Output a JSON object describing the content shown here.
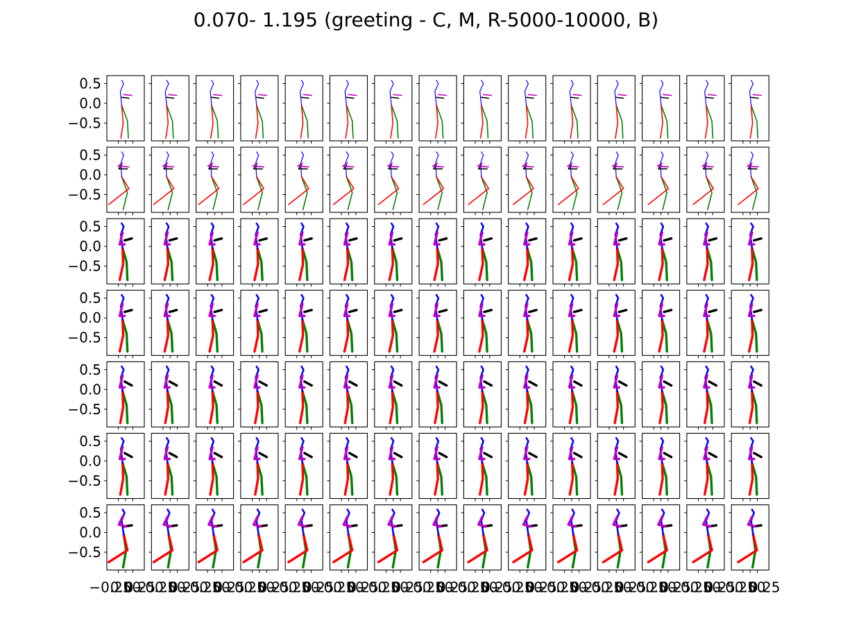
{
  "chart_data": {
    "type": "small-multiples-line",
    "title": "0.070- 1.195 (greeting - C, M, R-5000-10000, B)",
    "rows": 7,
    "cols": 15,
    "ylim": [
      -0.95,
      0.7
    ],
    "xlim": [
      -0.65,
      0.65
    ],
    "yticks": [
      "0.5",
      "0.0",
      "−0.5"
    ],
    "ytick_values": [
      0.5,
      0.0,
      -0.5
    ],
    "xtick_values": [
      -0.25,
      0.0,
      0.25
    ],
    "xtick_labels_visible": [
      "−0.25",
      "0.00",
      "0.25"
    ],
    "colors": {
      "right_leg": "#ff0000",
      "left_leg": "#008000",
      "spine": "#0000ff",
      "right_arm": "#bf00bf",
      "left_arm": "#000000"
    },
    "row_line_style": [
      "thin",
      "thin",
      "thick",
      "thick",
      "thick",
      "thick",
      "thick"
    ],
    "pose_groups": [
      {
        "rows": [
          0
        ],
        "poses": {
          "spine": [
            [
              -0.05,
              -0.05
            ],
            [
              -0.1,
              0.3
            ],
            [
              0.02,
              0.5
            ],
            [
              -0.05,
              0.58
            ]
          ],
          "right_arm": [
            [
              0.02,
              0.22
            ],
            [
              0.3,
              0.2
            ]
          ],
          "left_arm": [
            [
              -0.05,
              0.15
            ],
            [
              0.2,
              0.13
            ]
          ],
          "right_leg": [
            [
              -0.05,
              -0.05
            ],
            [
              0.0,
              -0.5
            ],
            [
              -0.08,
              -0.88
            ]
          ],
          "left_leg": [
            [
              -0.05,
              -0.05
            ],
            [
              0.15,
              -0.45
            ],
            [
              0.18,
              -0.88
            ]
          ]
        }
      },
      {
        "rows": [
          1
        ],
        "poses": {
          "spine": [
            [
              -0.05,
              -0.05
            ],
            [
              -0.08,
              0.3
            ],
            [
              0.02,
              0.5
            ],
            [
              -0.05,
              0.58
            ]
          ],
          "right_arm": [
            [
              -0.02,
              0.3
            ],
            [
              -0.18,
              0.22
            ],
            [
              0.2,
              0.2
            ]
          ],
          "left_arm": [
            [
              -0.05,
              0.25
            ],
            [
              -0.15,
              0.15
            ],
            [
              0.15,
              0.15
            ]
          ],
          "right_leg": [
            [
              -0.05,
              -0.05
            ],
            [
              0.2,
              -0.35
            ],
            [
              -0.5,
              -0.75
            ]
          ],
          "left_leg": [
            [
              -0.05,
              -0.05
            ],
            [
              0.15,
              -0.45
            ],
            [
              0.0,
              -0.88
            ]
          ]
        }
      },
      {
        "rows": [
          2,
          3
        ],
        "poses": {
          "spine": [
            [
              -0.02,
              -0.05
            ],
            [
              -0.08,
              0.3
            ],
            [
              0.02,
              0.5
            ],
            [
              -0.05,
              0.58
            ]
          ],
          "right_arm": [
            [
              -0.02,
              0.35
            ],
            [
              -0.12,
              0.05
            ],
            [
              0.05,
              0.05
            ]
          ],
          "left_arm": [
            [
              0.05,
              0.15
            ],
            [
              0.3,
              0.2
            ]
          ],
          "right_leg": [
            [
              -0.02,
              -0.05
            ],
            [
              0.0,
              -0.45
            ],
            [
              -0.12,
              -0.85
            ]
          ],
          "left_leg": [
            [
              -0.02,
              -0.05
            ],
            [
              0.12,
              -0.4
            ],
            [
              0.15,
              -0.85
            ]
          ]
        }
      },
      {
        "rows": [
          4,
          5
        ],
        "poses": {
          "spine": [
            [
              -0.02,
              -0.05
            ],
            [
              -0.08,
              0.3
            ],
            [
              0.02,
              0.5
            ],
            [
              -0.05,
              0.58
            ]
          ],
          "right_arm": [
            [
              -0.02,
              0.35
            ],
            [
              -0.12,
              0.05
            ],
            [
              0.05,
              0.05
            ]
          ],
          "left_arm": [
            [
              0.05,
              0.2
            ],
            [
              0.3,
              0.1
            ]
          ],
          "right_leg": [
            [
              -0.02,
              -0.05
            ],
            [
              0.0,
              -0.45
            ],
            [
              -0.1,
              -0.85
            ]
          ],
          "left_leg": [
            [
              -0.02,
              -0.05
            ],
            [
              0.12,
              -0.4
            ],
            [
              0.15,
              -0.85
            ]
          ]
        }
      },
      {
        "rows": [
          6
        ],
        "poses": {
          "spine": [
            [
              0.02,
              -0.05
            ],
            [
              -0.05,
              0.3
            ],
            [
              0.05,
              0.5
            ],
            [
              -0.02,
              0.58
            ]
          ],
          "right_arm": [
            [
              -0.02,
              0.4
            ],
            [
              -0.15,
              0.2
            ],
            [
              0.1,
              0.15
            ]
          ],
          "left_arm": [
            [
              0.0,
              0.15
            ],
            [
              0.3,
              0.18
            ]
          ],
          "right_leg": [
            [
              0.02,
              -0.05
            ],
            [
              0.15,
              -0.45
            ],
            [
              -0.5,
              -0.75
            ]
          ],
          "left_leg": [
            [
              0.02,
              -0.05
            ],
            [
              0.1,
              -0.45
            ],
            [
              0.0,
              -0.88
            ]
          ]
        }
      }
    ]
  }
}
